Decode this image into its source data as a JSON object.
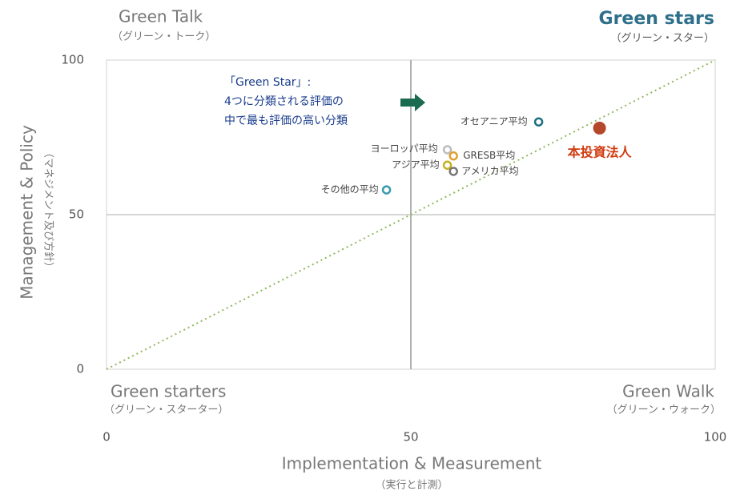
{
  "chart_data": {
    "type": "scatter",
    "quadrants": {
      "top_left": {
        "title": "Green Talk",
        "subtitle": "（グリーン・トーク）"
      },
      "top_right": {
        "title": "Green stars",
        "subtitle": "（グリーン・スター）"
      },
      "bottom_left": {
        "title": "Green starters",
        "subtitle": "（グリーン・スターター）"
      },
      "bottom_right": {
        "title": "Green Walk",
        "subtitle": "（グリーン・ウォーク）"
      }
    },
    "xlabel": "Implementation & Measurement",
    "xlabel_sub": "（実行と計測）",
    "ylabel": "Management & Policy",
    "ylabel_sub": "（マネジメント及び方針）",
    "annotation": [
      "「Green Star」:",
      "4つに分類される評価の",
      "中で最も評価の高い分類"
    ],
    "xlim": [
      0,
      100
    ],
    "xticks": [
      0,
      50,
      100
    ],
    "ylim": [
      0,
      100
    ],
    "yticks": [
      0,
      50,
      100
    ],
    "points": [
      {
        "name": "オセアニア平均",
        "x": 71,
        "y": 80,
        "color": "#1a6e80",
        "filled": false
      },
      {
        "name": "ヨーロッパ平均",
        "x": 56,
        "y": 71,
        "color": "#bdbdbd",
        "filled": false
      },
      {
        "name": "GRESB平均",
        "x": 57,
        "y": 69,
        "color": "#e0a030",
        "filled": false
      },
      {
        "name": "アジア平均",
        "x": 56,
        "y": 66,
        "color": "#c7b020",
        "filled": false
      },
      {
        "name": "アメリカ平均",
        "x": 57,
        "y": 64,
        "color": "#777777",
        "filled": false
      },
      {
        "name": "その他の平均",
        "x": 46,
        "y": 58,
        "color": "#3a9ab0",
        "filled": false
      },
      {
        "name": "本投資法人",
        "x": 81,
        "y": 78,
        "color": "#b5472a",
        "filled": true
      }
    ]
  }
}
